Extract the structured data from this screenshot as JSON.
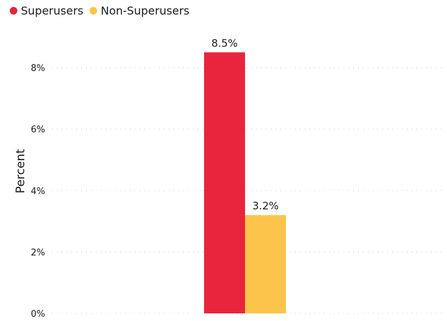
{
  "chart_data": {
    "type": "bar",
    "title": "",
    "xlabel": "",
    "ylabel": "Percent",
    "ylim": [
      0,
      8.5
    ],
    "yticks": [
      0,
      2,
      4,
      6,
      8
    ],
    "ytick_suffix": "%",
    "grid": "horizontal dotted",
    "legend_position": "top-left",
    "series": [
      {
        "name": "Superusers",
        "value": 8.5,
        "label": "8.5%",
        "color": "#e8253d"
      },
      {
        "name": "Non-Superusers",
        "value": 3.2,
        "label": "3.2%",
        "color": "#fcc44a"
      }
    ]
  }
}
